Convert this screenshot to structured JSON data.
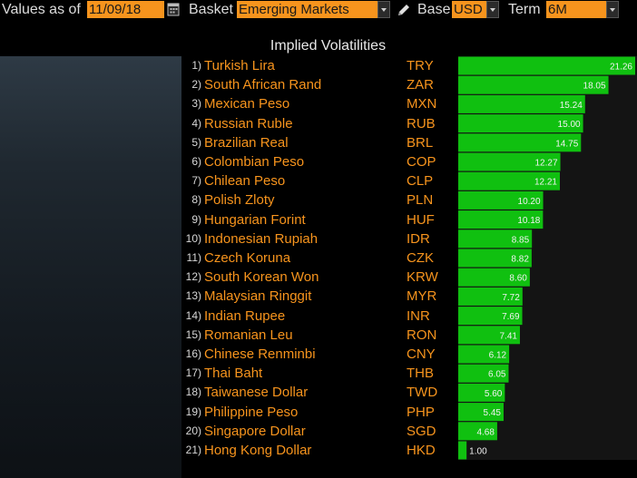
{
  "toolbar": {
    "values_as_of_label": "Values as of",
    "date_value": "11/09/18",
    "basket_label": "Basket",
    "basket_value": "Emerging Markets",
    "base_label": "Base",
    "base_value": "USD",
    "term_label": "Term",
    "term_value": "6M"
  },
  "icons": {
    "calendar": "calendar-icon",
    "pencil": "pencil-icon",
    "dropdown": "chevron-down-icon"
  },
  "colors": {
    "accent_orange": "#f7941d",
    "bar_green": "#10c010",
    "bar_green_dark": "#0a8a0a",
    "background": "#000000"
  },
  "chart_data": {
    "type": "bar",
    "orientation": "horizontal",
    "title": "Implied Volatilities",
    "ranks": [
      "1)",
      "2)",
      "3)",
      "4)",
      "5)",
      "6)",
      "7)",
      "8)",
      "9)",
      "10)",
      "11)",
      "12)",
      "13)",
      "14)",
      "15)",
      "16)",
      "17)",
      "18)",
      "19)",
      "20)",
      "21)"
    ],
    "categories": [
      "Turkish Lira",
      "South African Rand",
      "Mexican Peso",
      "Russian Ruble",
      "Brazilian Real",
      "Colombian Peso",
      "Chilean Peso",
      "Polish Zloty",
      "Hungarian Forint",
      "Indonesian Rupiah",
      "Czech Koruna",
      "South Korean Won",
      "Malaysian Ringgit",
      "Indian Rupee",
      "Romanian Leu",
      "Chinese Renminbi",
      "Thai Baht",
      "Taiwanese Dollar",
      "Philippine Peso",
      "Singapore Dollar",
      "Hong Kong Dollar"
    ],
    "codes": [
      "TRY",
      "ZAR",
      "MXN",
      "RUB",
      "BRL",
      "COP",
      "CLP",
      "PLN",
      "HUF",
      "IDR",
      "CZK",
      "KRW",
      "MYR",
      "INR",
      "RON",
      "CNY",
      "THB",
      "TWD",
      "PHP",
      "SGD",
      "HKD"
    ],
    "values": [
      21.26,
      18.05,
      15.24,
      15.0,
      14.75,
      12.27,
      12.21,
      10.2,
      10.18,
      8.85,
      8.82,
      8.6,
      7.72,
      7.69,
      7.41,
      6.12,
      6.05,
      5.6,
      5.45,
      4.68,
      1.0
    ],
    "value_labels": [
      "21.26",
      "18.05",
      "15.24",
      "15.00",
      "14.75",
      "12.27",
      "12.21",
      "10.20",
      "10.18",
      "8.85",
      "8.82",
      "8.60",
      "7.72",
      "7.69",
      "7.41",
      "6.12",
      "6.05",
      "5.60",
      "5.45",
      "4.68",
      "1.00"
    ],
    "xlim": [
      0,
      21.26
    ],
    "grid": false,
    "legend": "none"
  }
}
